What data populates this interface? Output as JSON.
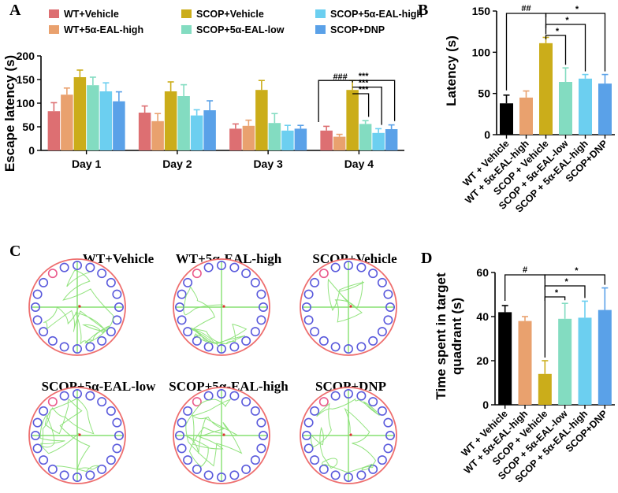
{
  "panel_labels": [
    "A",
    "B",
    "C",
    "D"
  ],
  "colors": {
    "WT+Vehicle": "#dd6f72",
    "WT+5α-EAL-high": "#e9a16e",
    "SCOP+Vehicle": "#cbad1a",
    "SCOP+5α-EAL-low": "#83dcc1",
    "SCOP+5α-EAL-high": "#6ccff0",
    "SCOP+DNP": "#5aa1e8",
    "WT + Vehicle (B,D)": "#000000",
    "circle_pool": "#ee6e6e",
    "circle_hole": "#5a5adc",
    "circle_target": "#ea5a8c",
    "track": "#86e070"
  },
  "chart_data": [
    {
      "panel": "A",
      "type": "bar",
      "ylabel": "Escape latency (s)",
      "xlabel": "",
      "ylim": [
        0,
        200
      ],
      "yticks": [
        "0",
        "50",
        "100",
        "150",
        "200"
      ],
      "categories": [
        "Day 1",
        "Day 2",
        "Day 3",
        "Day 4"
      ],
      "legend": [
        "WT+Vehicle",
        "WT+5α-EAL-high",
        "SCOP+Vehicle",
        "SCOP+5α-EAL-low",
        "SCOP+5α-EAL-high",
        "SCOP+DNP"
      ],
      "series": [
        {
          "name": "WT+Vehicle",
          "values": [
            83,
            80,
            46,
            42
          ],
          "errors": [
            18,
            14,
            10,
            9
          ]
        },
        {
          "name": "WT+5α-EAL-high",
          "values": [
            118,
            62,
            52,
            29
          ],
          "errors": [
            14,
            16,
            12,
            5
          ]
        },
        {
          "name": "SCOP+Vehicle",
          "values": [
            155,
            125,
            128,
            128
          ],
          "errors": [
            15,
            20,
            20,
            20
          ]
        },
        {
          "name": "SCOP+5α-EAL-low",
          "values": [
            138,
            115,
            58,
            56
          ],
          "errors": [
            17,
            24,
            20,
            7
          ]
        },
        {
          "name": "SCOP+5α-EAL-high",
          "values": [
            125,
            74,
            42,
            37
          ],
          "errors": [
            18,
            12,
            11,
            9
          ]
        },
        {
          "name": "SCOP+DNP",
          "values": [
            104,
            85,
            46,
            45
          ],
          "errors": [
            20,
            20,
            7,
            9
          ]
        }
      ],
      "annotations": [
        "###",
        "***",
        "***",
        "***"
      ]
    },
    {
      "panel": "B",
      "type": "bar",
      "ylabel": "Latency (s)",
      "ylim": [
        0,
        150
      ],
      "yticks": [
        "0",
        "50",
        "100",
        "150"
      ],
      "categories": [
        "WT + Vehicle",
        "WT + 5α-EAL-high",
        "SCOP + Vehicle",
        "SCOP + 5α-EAL-low",
        "SCOP + 5α-EAL-high",
        "SCOP+DNP"
      ],
      "values": [
        38,
        45,
        111,
        64,
        68,
        62
      ],
      "errors": [
        10,
        8,
        7,
        17,
        5,
        11
      ],
      "annotations": [
        "##",
        "*",
        "*",
        "*"
      ]
    },
    {
      "panel": "D",
      "type": "bar",
      "ylabel": "Time spent in target quadrant (s)",
      "ylabel_lines": [
        "Time spent in target",
        "quadrant (s)"
      ],
      "ylim": [
        0,
        60
      ],
      "yticks": [
        "0",
        "20",
        "40",
        "60"
      ],
      "categories": [
        "WT + Vehicle",
        "WT + 5α-EAL-high",
        "SCOP + Vehicle",
        "SCOP + 5α-EAL-low",
        "SCOP + 5α-EAL-high",
        "SCOP+DNP"
      ],
      "values": [
        42,
        38,
        14,
        39,
        39.5,
        43
      ],
      "errors": [
        3,
        2,
        6,
        7,
        7.5,
        10
      ],
      "annotations": [
        "#",
        "*",
        "*",
        "*"
      ]
    }
  ],
  "panel_c": {
    "titles": [
      "WT+Vehicle",
      "WT+5α-EAL-high",
      "SCOP+Vehicle",
      "SCOP+5α-EAL-low",
      "SCOP+5α-EAL-high",
      "SCOP+DNP"
    ]
  }
}
